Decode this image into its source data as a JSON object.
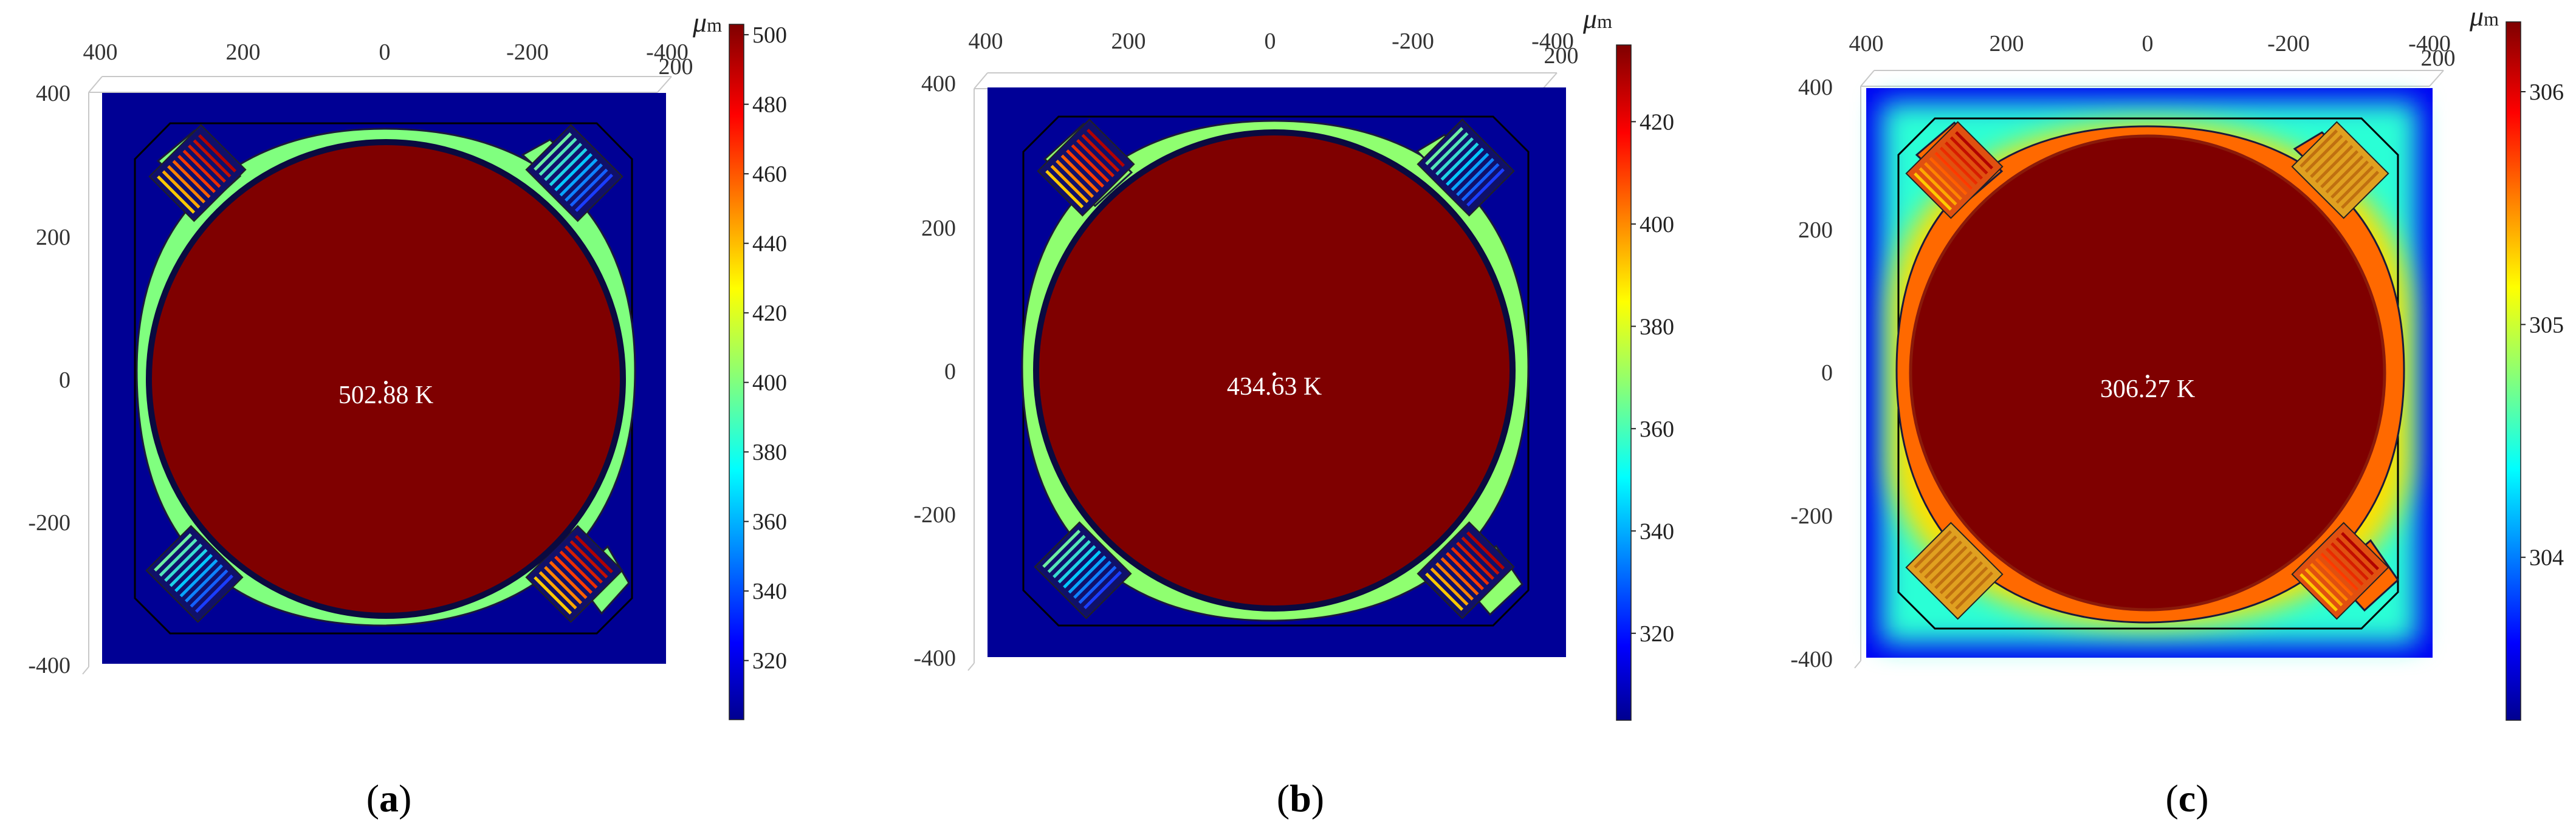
{
  "axis_ticks": {
    "top": [
      "400",
      "200",
      "0",
      "-200",
      "-400"
    ],
    "top_extra": "200",
    "left": [
      "400",
      "200",
      "0",
      "-200",
      "-400"
    ]
  },
  "panels": [
    {
      "id": "a",
      "caption": "(a)",
      "label_open": "(",
      "label_letter": "a",
      "label_close": ")",
      "center_value": "502.88 K",
      "unit_mu": "μ",
      "unit_m": "m",
      "colorbar_ticks": [
        "500",
        "480",
        "460",
        "440",
        "420",
        "400",
        "380",
        "360",
        "340",
        "320"
      ],
      "tick_values": [
        500,
        480,
        460,
        440,
        420,
        400,
        380,
        360,
        340,
        320
      ],
      "cb_min": 303,
      "cb_max": 503,
      "values": {
        "bg": 304,
        "ring": 400,
        "disc": 503
      },
      "mode": "ring"
    },
    {
      "id": "b",
      "caption": "(b)",
      "label_open": "(",
      "label_letter": "b",
      "label_close": ")",
      "center_value": "434.63 K",
      "unit_mu": "μ",
      "unit_m": "m",
      "colorbar_ticks": [
        "420",
        "400",
        "380",
        "360",
        "340",
        "320"
      ],
      "tick_values": [
        420,
        400,
        380,
        360,
        340,
        320
      ],
      "cb_min": 303,
      "cb_max": 435,
      "values": {
        "bg": 304,
        "ring": 369,
        "disc": 435
      },
      "mode": "ring"
    },
    {
      "id": "c",
      "caption": "(c)",
      "label_open": "(",
      "label_letter": "c",
      "label_close": ")",
      "center_value": "306.27 K",
      "unit_mu": "μ",
      "unit_m": "m",
      "colorbar_ticks": [
        "306",
        "305",
        "304"
      ],
      "tick_values": [
        306,
        305,
        304
      ],
      "cb_min": 303.3,
      "cb_max": 306.3,
      "values": {
        "bg": 303.6,
        "ring": 305.6,
        "disc": 306.3
      },
      "mode": "glow"
    }
  ]
}
